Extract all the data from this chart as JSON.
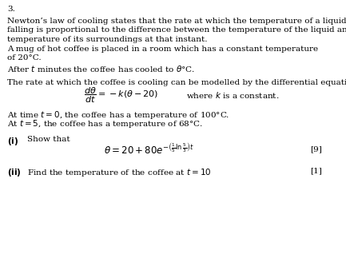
{
  "question_number": "3.",
  "line1": "Newton’s law of cooling states that the rate at which the temperature of a liquid is",
  "line2": "falling is proportional to the difference between the temperature of the liquid and the",
  "line3": "temperature of its surroundings at that instant.",
  "line4": "A mug of hot coffee is placed in a room which has a constant temperature",
  "line5": "of 20°C.",
  "line6": "After $t$ minutes the coffee has cooled to $\\theta$°C.",
  "para2": "The rate at which the coffee is cooling can be modelled by the differential equation",
  "eq_lhs": "$\\dfrac{d\\theta}{dt} = -k(\\theta - 20)$",
  "eq_rhs": "where $k$ is a constant.",
  "line_at0": "At time $t = 0$, the coffee has a temperature of 100°C.",
  "line_at5": "At $t = 5$, the coffee has a temperature of 68°C.",
  "part_i_label": "\\textbf{(i)}",
  "part_i_text": "Show that",
  "part_i_eq": "$\\theta = 20 + 80e^{-\\left(\\frac{1}{5}\\ln\\frac{5}{3}\\right)t}$",
  "part_i_mark": "[9]",
  "part_ii_label": "\\textbf{(ii)}",
  "part_ii_text": "Find the temperature of the coffee at $t = 10$",
  "part_ii_mark": "[1]",
  "bg": "#ffffff",
  "fg": "#000000",
  "fs": 7.5
}
